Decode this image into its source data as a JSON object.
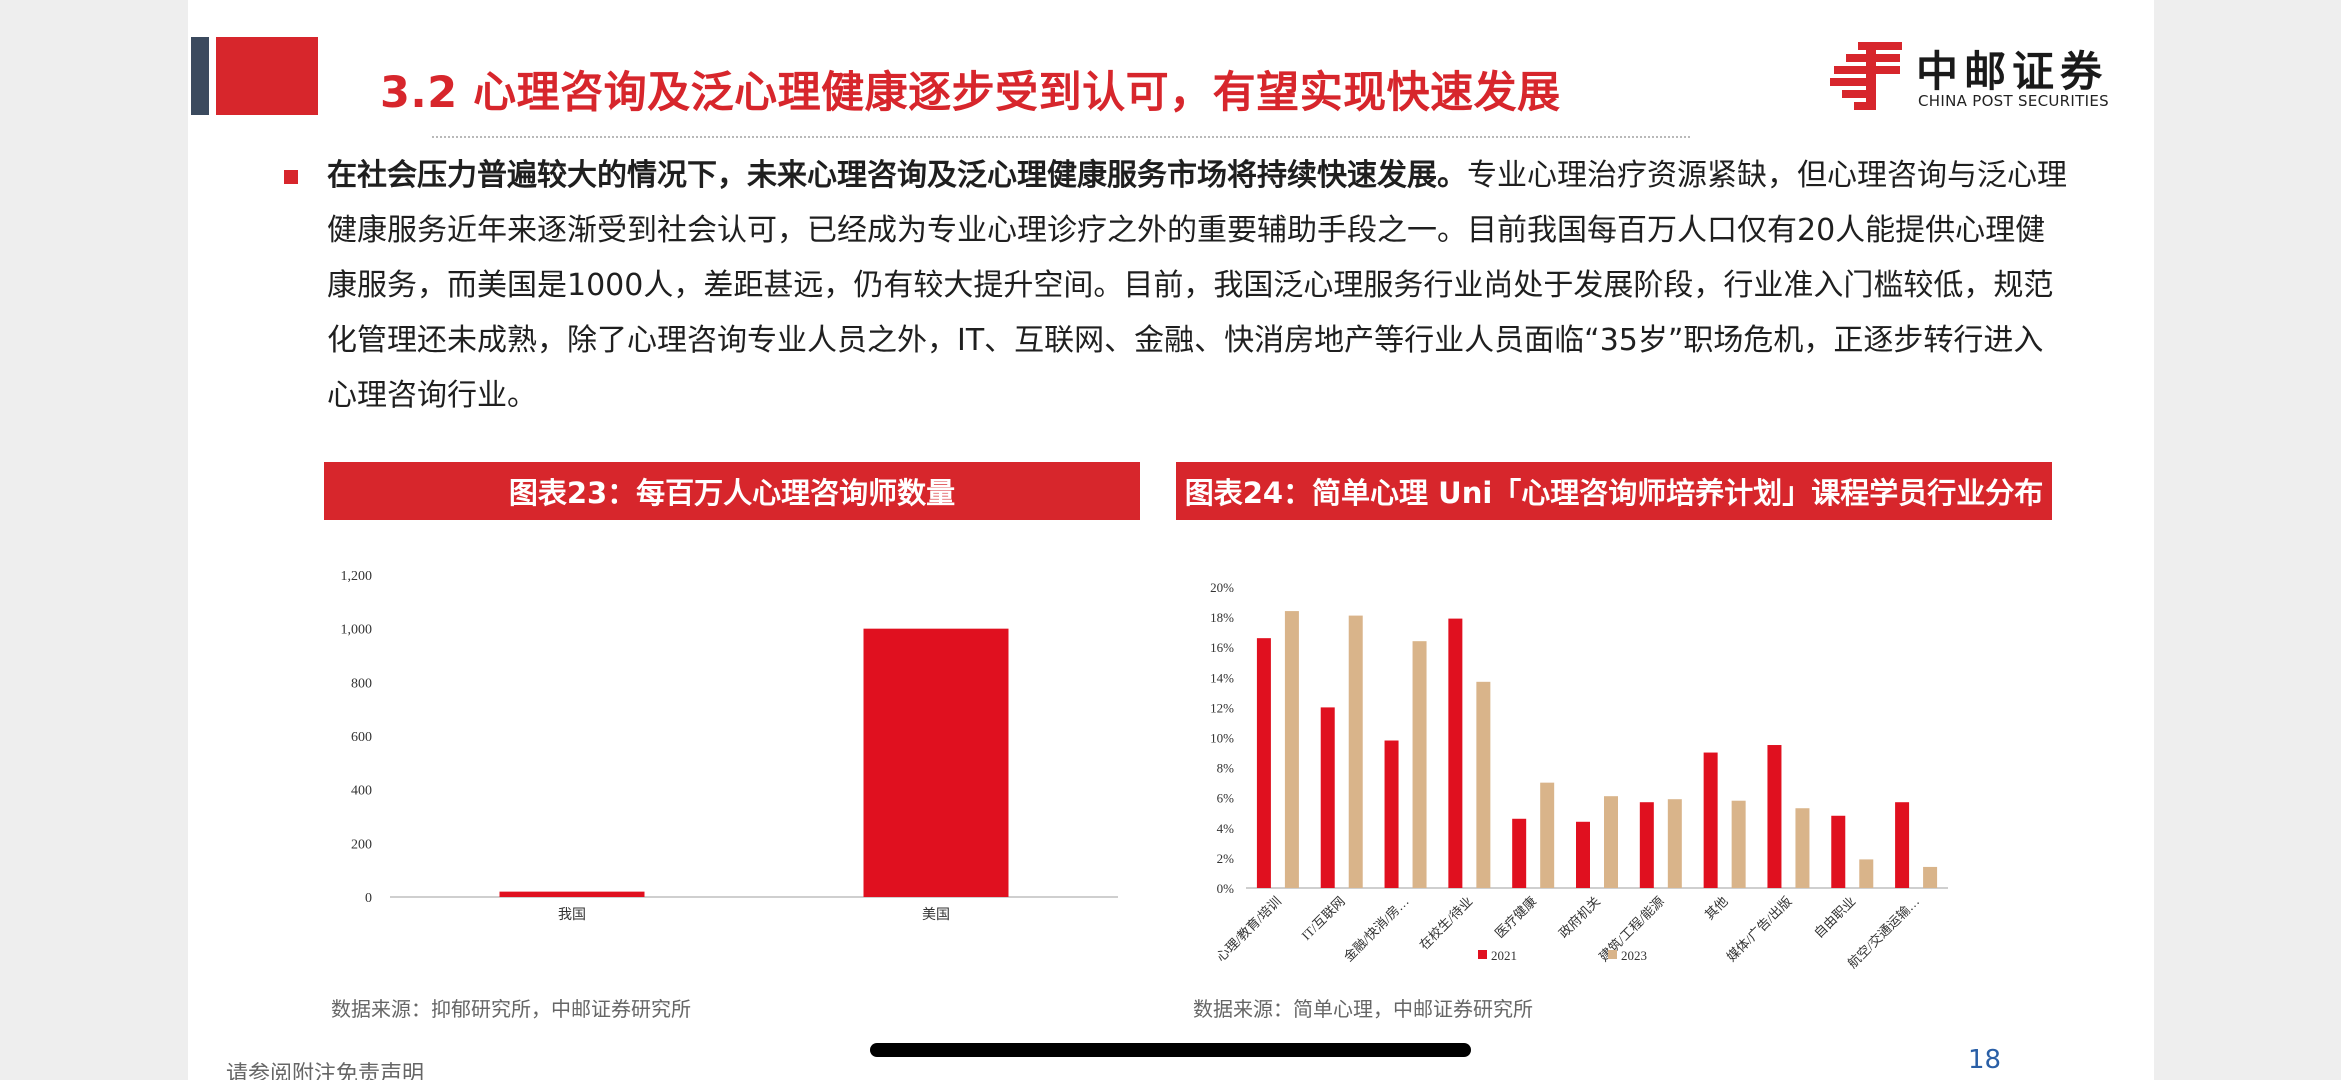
{
  "header": {
    "title": "3.2 心理咨询及泛心理健康逐步受到认可，有望实现快速发展",
    "logo_cn": "中邮证券",
    "logo_en": "CHINA POST SECURITIES"
  },
  "body": {
    "lead_bold": "在社会压力普遍较大的情况下，未来心理咨询及泛心理健康服务市场将持续快速发展。",
    "text": "专业心理治疗资源紧缺，但心理咨询与泛心理健康服务近年来逐渐受到社会认可，已经成为专业心理诊疗之外的重要辅助手段之一。目前我国每百万人口仅有20人能提供心理健康服务，而美国是1000人，差距甚远，仍有较大提升空间。目前，我国泛心理服务行业尚处于发展阶段，行业准入门槛较低，规范化管理还未成熟，除了心理咨询专业人员之外，IT、互联网、金融、快消房地产等行业人员面临“35岁”职场危机，正逐步转行进入心理咨询行业。"
  },
  "figures": {
    "left_title": "图表23：每百万人心理咨询师数量",
    "left_source": "数据来源：抑郁研究所，中邮证券研究所",
    "right_title": "图表24：简单心理 Uni「心理咨询师培养计划」课程学员行业分布",
    "right_source": "数据来源：简单心理，中邮证券研究所"
  },
  "footer": {
    "page_number": "18",
    "disclaimer": "请参阅附注免责声明"
  },
  "colors": {
    "brand_red": "#d7262c",
    "series_2021": "#e0101f",
    "series_2023": "#d9b48a",
    "header_navy": "#3b4a5e"
  },
  "chart_data": [
    {
      "type": "bar",
      "title": "图表23：每百万人心理咨询师数量",
      "categories": [
        "我国",
        "美国"
      ],
      "values": [
        20,
        1000
      ],
      "ylim": [
        0,
        1200
      ],
      "yticks": [
        0,
        200,
        400,
        600,
        800,
        1000,
        1200
      ],
      "ytick_labels": [
        "0",
        "200",
        "400",
        "600",
        "800",
        "1,000",
        "1,200"
      ],
      "grid": false,
      "legend": "none"
    },
    {
      "type": "bar",
      "title": "图表24：简单心理 Uni「心理咨询师培养计划」课程学员行业分布",
      "categories": [
        "心理/教育/培训",
        "IT/互联网",
        "金融/快消/房…",
        "在校生/待业",
        "医疗健康",
        "政府机关",
        "建筑/工程/能源",
        "其他",
        "媒体/广告/出版",
        "自由职业",
        "航空/交通运输…"
      ],
      "series": [
        {
          "name": "2021",
          "values": [
            16.6,
            12.0,
            9.8,
            17.9,
            4.6,
            4.4,
            5.7,
            9.0,
            9.5,
            4.8,
            5.7
          ]
        },
        {
          "name": "2023",
          "values": [
            18.4,
            18.1,
            16.4,
            13.7,
            7.0,
            6.1,
            5.9,
            5.8,
            5.3,
            1.9,
            1.4
          ]
        }
      ],
      "ylim": [
        0,
        20
      ],
      "yticks": [
        0,
        2,
        4,
        6,
        8,
        10,
        12,
        14,
        16,
        18,
        20
      ],
      "ytick_labels": [
        "0%",
        "2%",
        "4%",
        "6%",
        "8%",
        "10%",
        "12%",
        "14%",
        "16%",
        "18%",
        "20%"
      ],
      "grid": false,
      "legend": "bottom"
    }
  ]
}
